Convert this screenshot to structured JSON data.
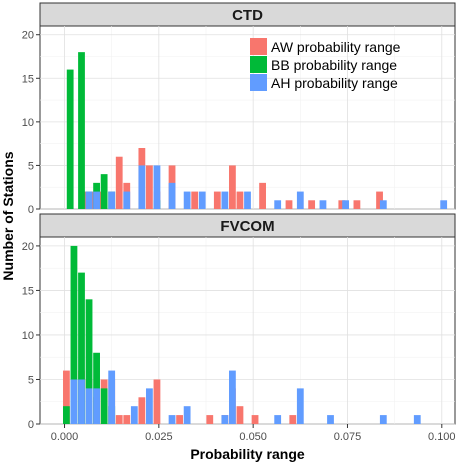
{
  "chart_data": {
    "type": "bar",
    "xlabel": "Probability range",
    "ylabel": "Number of Stations",
    "xlim": [
      -0.0065,
      0.1035
    ],
    "ylim": [
      0,
      21
    ],
    "x_ticks": [
      0.0,
      0.025,
      0.05,
      0.075,
      0.1
    ],
    "x_tick_labels": [
      "0.000",
      "0.025",
      "0.050",
      "0.075",
      "0.100"
    ],
    "y_ticks": [
      0,
      5,
      10,
      15,
      20
    ],
    "y_tick_labels": [
      "0",
      "5",
      "10",
      "15",
      "20"
    ],
    "bin_width": 0.0018,
    "grid": true,
    "legend_position": "top-right",
    "legend": [
      {
        "name": "AW probability range",
        "color": "#F8766D"
      },
      {
        "name": "BB probability range",
        "color": "#00BA38"
      },
      {
        "name": "AH probability range",
        "color": "#619CFF"
      }
    ],
    "panels": [
      {
        "title": "CTD",
        "series": [
          {
            "name": "AW probability range",
            "color": "#F8766D",
            "x": [
              0.0055,
              0.0075,
              0.0095,
              0.0145,
              0.0165,
              0.0205,
              0.0225,
              0.0245,
              0.0285,
              0.0345,
              0.0405,
              0.0445,
              0.0465,
              0.0525,
              0.0595,
              0.0655,
              0.0735,
              0.0775,
              0.0835
            ],
            "values": [
              2,
              2,
              2,
              6,
              3,
              7,
              5,
              2,
              5,
              2,
              2,
              5,
              2,
              3,
              1,
              1,
              1,
              1,
              2
            ]
          },
          {
            "name": "BB probability range",
            "color": "#00BA38",
            "x": [
              0.0015,
              0.0045,
              0.0065,
              0.0085,
              0.0105,
              0.0125,
              0.0245
            ],
            "values": [
              16,
              18,
              2,
              3,
              4,
              2,
              1
            ]
          },
          {
            "name": "AH probability range",
            "color": "#619CFF",
            "x": [
              0.0065,
              0.0085,
              0.0125,
              0.0165,
              0.0205,
              0.0245,
              0.0285,
              0.0325,
              0.0365,
              0.0425,
              0.0485,
              0.0565,
              0.0625,
              0.0685,
              0.0745,
              0.0845,
              0.1005
            ],
            "values": [
              2,
              2,
              2,
              2,
              5,
              5,
              3,
              2,
              2,
              2,
              2,
              1,
              2,
              1,
              1,
              1,
              1
            ]
          }
        ]
      },
      {
        "title": "FVCOM",
        "series": [
          {
            "name": "AW probability range",
            "color": "#F8766D",
            "x": [
              0.0005,
              0.0045,
              0.0065,
              0.0085,
              0.0105,
              0.0125,
              0.0145,
              0.0165,
              0.0205,
              0.0245,
              0.0305,
              0.0385,
              0.0425,
              0.0445,
              0.0465,
              0.0505,
              0.0605
            ],
            "values": [
              6,
              6,
              5,
              3,
              5,
              5,
              1,
              1,
              3,
              5,
              1,
              1,
              1,
              4,
              2,
              1,
              1
            ]
          },
          {
            "name": "BB probability range",
            "color": "#00BA38",
            "x": [
              0.0005,
              0.0025,
              0.0045,
              0.0065,
              0.0085,
              0.0105,
              0.0125
            ],
            "values": [
              2,
              20,
              17,
              14,
              8,
              4,
              2
            ]
          },
          {
            "name": "AH probability range",
            "color": "#619CFF",
            "x": [
              0.0025,
              0.0045,
              0.0065,
              0.0085,
              0.0125,
              0.0185,
              0.0225,
              0.0285,
              0.0325,
              0.0425,
              0.0445,
              0.0565,
              0.0625,
              0.0705,
              0.0845,
              0.0935
            ],
            "values": [
              5,
              5,
              4,
              4,
              6,
              2,
              4,
              1,
              2,
              1,
              6,
              1,
              4,
              1,
              1,
              1
            ]
          }
        ]
      }
    ]
  }
}
